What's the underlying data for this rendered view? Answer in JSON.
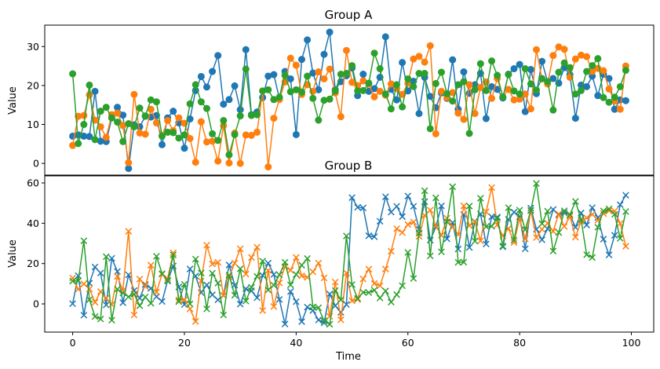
{
  "chart_data": [
    {
      "type": "line",
      "title": "Group A",
      "ylabel": "Value",
      "xlabel": "",
      "ylim": [
        -3,
        35.5
      ],
      "xlim": [
        -5,
        104
      ],
      "yticks": [
        0,
        10,
        20,
        30
      ],
      "marker": "circle",
      "grid": false,
      "x": [
        0,
        1,
        2,
        3,
        4,
        5,
        6,
        7,
        8,
        9,
        10,
        11,
        12,
        13,
        14,
        15,
        16,
        17,
        18,
        19,
        20,
        21,
        22,
        23,
        24,
        25,
        26,
        27,
        28,
        29,
        30,
        31,
        32,
        33,
        34,
        35,
        36,
        37,
        38,
        39,
        40,
        41,
        42,
        43,
        44,
        45,
        46,
        47,
        48,
        49,
        50,
        51,
        52,
        53,
        54,
        55,
        56,
        57,
        58,
        59,
        60,
        61,
        62,
        63,
        64,
        65,
        66,
        67,
        68,
        69,
        70,
        71,
        72,
        73,
        74,
        75,
        76,
        77,
        78,
        79,
        80,
        81,
        82,
        83,
        84,
        85,
        86,
        87,
        88,
        89,
        90,
        91,
        92,
        93,
        94,
        95,
        96,
        97,
        98,
        99
      ],
      "series": [
        {
          "color": "#1f77b4",
          "values": [
            7.0,
            7.3,
            7.0,
            6.9,
            18.5,
            5.7,
            5.6,
            11.7,
            14.4,
            12.4,
            -1.3,
            9.9,
            9.4,
            12.1,
            11.9,
            12.3,
            4.8,
            11.7,
            13.4,
            10.4,
            3.9,
            11.4,
            18.7,
            22.3,
            19.6,
            23.6,
            27.7,
            15.2,
            16.4,
            19.9,
            13.8,
            29.2,
            12.5,
            13.2,
            16.9,
            22.4,
            22.8,
            16.7,
            23.6,
            21.7,
            7.4,
            26.7,
            31.7,
            23.2,
            18.9,
            28.0,
            33.7,
            18.9,
            21.0,
            22.5,
            24.5,
            17.4,
            22.9,
            18.5,
            19.2,
            22.1,
            32.5,
            19.0,
            16.3,
            25.9,
            18.6,
            21.1,
            12.8,
            22.1,
            17.2,
            14.3,
            18.1,
            16.7,
            26.6,
            13.9,
            23.5,
            18.0,
            20.2,
            23.1,
            11.5,
            19.7,
            19.0,
            16.8,
            22.9,
            24.3,
            25.4,
            13.3,
            24.1,
            17.9,
            26.2,
            21.0,
            21.8,
            20.6,
            24.6,
            22.8,
            11.6,
            20.1,
            19.7,
            22.4,
            17.4,
            22.9,
            21.8,
            13.9,
            16.3,
            16.1
          ]
        },
        {
          "color": "#ff7f0e",
          "values": [
            4.6,
            12.1,
            12.3,
            17.6,
            11.1,
            9.4,
            6.7,
            12.5,
            12.9,
            9.7,
            0.2,
            17.7,
            7.8,
            7.5,
            13.9,
            10.4,
            7.1,
            11.0,
            8.4,
            11.7,
            10.3,
            6.4,
            0.3,
            10.7,
            5.5,
            5.7,
            0.6,
            9.7,
            0.1,
            7.8,
            0.0,
            7.3,
            7.2,
            8.0,
            18.6,
            -0.9,
            11.6,
            16.4,
            20.9,
            27.0,
            25.2,
            17.7,
            20.2,
            18.5,
            23.5,
            21.7,
            24.2,
            18.1,
            12.0,
            29.0,
            20.8,
            20.0,
            21.2,
            20.4,
            17.1,
            18.5,
            17.5,
            20.4,
            19.2,
            17.7,
            20.6,
            26.8,
            27.5,
            26.0,
            30.2,
            7.6,
            18.5,
            16.9,
            18.2,
            12.9,
            11.3,
            20.2,
            12.8,
            19.5,
            20.9,
            16.7,
            21.8,
            17.1,
            19.0,
            16.3,
            16.5,
            17.8,
            14.0,
            29.2,
            21.7,
            20.4,
            27.7,
            29.9,
            29.3,
            22.1,
            26.8,
            27.8,
            27.4,
            23.6,
            24.4,
            23.8,
            19.1,
            16.0,
            13.9,
            25.0
          ]
        },
        {
          "color": "#2ca02c",
          "values": [
            23.0,
            5.1,
            10.0,
            20.1,
            6.1,
            13.4,
            14.4,
            11.7,
            10.6,
            5.6,
            10.2,
            9.4,
            14.2,
            12.2,
            16.3,
            15.8,
            7.0,
            8.0,
            7.9,
            6.5,
            7.3,
            15.3,
            20.2,
            15.8,
            14.1,
            7.6,
            5.9,
            11.0,
            2.2,
            7.4,
            12.2,
            24.2,
            12.3,
            12.5,
            18.6,
            18.9,
            16.4,
            17.0,
            22.6,
            18.4,
            18.9,
            18.3,
            22.4,
            16.7,
            11.1,
            16.2,
            16.5,
            18.6,
            22.9,
            23.1,
            25.1,
            18.6,
            18.7,
            20.6,
            28.3,
            24.3,
            17.8,
            14.0,
            20.2,
            14.5,
            21.7,
            19.7,
            23.1,
            23.1,
            8.9,
            20.5,
            23.4,
            17.9,
            16.0,
            20.2,
            21.0,
            7.7,
            18.9,
            25.6,
            18.7,
            26.3,
            22.6,
            17.0,
            22.8,
            18.6,
            17.8,
            24.3,
            20.4,
            18.8,
            21.8,
            21.0,
            13.7,
            23.4,
            25.8,
            24.6,
            17.8,
            18.7,
            23.6,
            25.1,
            26.9,
            16.9,
            15.7,
            17.0,
            19.7,
            23.9
          ]
        }
      ]
    },
    {
      "type": "line",
      "title": "Group B",
      "ylabel": "Value",
      "xlabel": "Time",
      "ylim": [
        -14,
        63.5
      ],
      "xlim": [
        -5,
        104
      ],
      "xticks": [
        0,
        20,
        40,
        60,
        80,
        100
      ],
      "yticks": [
        0,
        20,
        40,
        60
      ],
      "marker": "x",
      "grid": false,
      "x": [
        0,
        1,
        2,
        3,
        4,
        5,
        6,
        7,
        8,
        9,
        10,
        11,
        12,
        13,
        14,
        15,
        16,
        17,
        18,
        19,
        20,
        21,
        22,
        23,
        24,
        25,
        26,
        27,
        28,
        29,
        30,
        31,
        32,
        33,
        34,
        35,
        36,
        37,
        38,
        39,
        40,
        41,
        42,
        43,
        44,
        45,
        46,
        47,
        48,
        49,
        50,
        51,
        52,
        53,
        54,
        55,
        56,
        57,
        58,
        59,
        60,
        61,
        62,
        63,
        64,
        65,
        66,
        67,
        68,
        69,
        70,
        71,
        72,
        73,
        74,
        75,
        76,
        77,
        78,
        79,
        80,
        81,
        82,
        83,
        84,
        85,
        86,
        87,
        88,
        89,
        90,
        91,
        92,
        93,
        94,
        95,
        96,
        97,
        98,
        99
      ],
      "series": [
        {
          "color": "#1f77b4",
          "values": [
            0.1,
            14.0,
            -5.6,
            10.3,
            18.3,
            15.3,
            -0.5,
            22.6,
            16.1,
            0.6,
            14.4,
            6.6,
            2.8,
            9.6,
            7.7,
            3.6,
            1.2,
            11.6,
            18.8,
            8.4,
            -0.3,
            17.3,
            13.8,
            5.6,
            9.4,
            4.5,
            2.0,
            4.1,
            19.3,
            9.3,
            -0.1,
            7.5,
            6.5,
            3.1,
            14.1,
            20.2,
            14.6,
            2.2,
            -10.0,
            6.1,
            1.1,
            -8.8,
            -1.6,
            -3.3,
            -8.0,
            -9.4,
            4.9,
            -0.9,
            -4.2,
            -0.3,
            52.7,
            47.9,
            47.6,
            33.8,
            33.3,
            41.0,
            53.1,
            45.5,
            48.4,
            43.3,
            53.5,
            48.4,
            37.0,
            50.7,
            31.6,
            38.1,
            48.6,
            32.3,
            40.3,
            27.2,
            44.3,
            28.0,
            40.8,
            44.6,
            29.7,
            43.2,
            43.1,
            28.3,
            41.9,
            45.5,
            43.3,
            27.3,
            47.5,
            37.0,
            31.8,
            37.2,
            46.8,
            44.1,
            45.2,
            44.1,
            38.0,
            45.1,
            39.1,
            47.7,
            42.8,
            32.1,
            24.3,
            34.0,
            49.2,
            53.9
          ]
        },
        {
          "color": "#ff7f0e",
          "values": [
            12.8,
            7.3,
            9.9,
            7.4,
            0.8,
            6.1,
            2.8,
            -0.3,
            13.6,
            6.7,
            36.0,
            -5.5,
            12.3,
            8.6,
            19.2,
            5.8,
            14.7,
            12.6,
            25.3,
            1.9,
            2.0,
            -2.5,
            -8.7,
            11.4,
            29.1,
            19.8,
            20.6,
            4.2,
            13.3,
            20.2,
            27.3,
            14.8,
            23.0,
            28.1,
            -3.3,
            16.6,
            -1.3,
            10.4,
            18.4,
            16.7,
            23.0,
            13.9,
            13.2,
            15.9,
            20.2,
            12.9,
            -6.2,
            10.8,
            -7.9,
            15.3,
            1.5,
            2.2,
            12.4,
            17.2,
            10.1,
            9.0,
            17.3,
            26.1,
            37.3,
            35.4,
            39.4,
            40.6,
            33.5,
            43.9,
            46.5,
            38.6,
            34.0,
            42.5,
            38.1,
            34.4,
            48.6,
            38.8,
            40.6,
            31.3,
            45.7,
            57.7,
            39.2,
            33.8,
            37.4,
            30.5,
            42.3,
            32.3,
            46.2,
            32.9,
            37.0,
            40.0,
            36.0,
            44.6,
            38.4,
            43.4,
            33.1,
            40.9,
            42.7,
            44.4,
            41.5,
            44.8,
            46.2,
            46.0,
            39.9,
            28.6
          ]
        },
        {
          "color": "#2ca02c",
          "values": [
            11.3,
            11.4,
            31.3,
            2.1,
            -6.3,
            -7.5,
            23.4,
            -8.1,
            7.3,
            5.4,
            3.5,
            4.8,
            -0.9,
            3.4,
            0.3,
            23.6,
            15.0,
            11.3,
            24.3,
            1.1,
            9.7,
            0.0,
            22.2,
            15.3,
            -2.5,
            15.2,
            10.3,
            -5.5,
            14.2,
            4.3,
            17.4,
            1.4,
            8.2,
            13.6,
            21.2,
            6.9,
            9.3,
            14.4,
            20.6,
            9.4,
            14.6,
            19.2,
            22.5,
            -1.5,
            -1.9,
            -8.4,
            -10.1,
            6.6,
            2.0,
            33.7,
            9.6,
            2.7,
            5.7,
            5.6,
            6.8,
            2.9,
            6.4,
            0.9,
            4.6,
            9.0,
            25.5,
            12.6,
            35.1,
            56.1,
            23.8,
            52.6,
            25.8,
            40.7,
            58.1,
            20.6,
            20.7,
            48.5,
            31.1,
            52.4,
            38.3,
            38.5,
            42.6,
            28.7,
            47.7,
            31.6,
            46.5,
            36.8,
            46.4,
            59.7,
            39.8,
            46.0,
            26.2,
            35.4,
            46.2,
            44.3,
            50.8,
            41.8,
            24.4,
            23.0,
            38.0,
            46.1,
            47.1,
            44.4,
            32.5,
            45.8
          ]
        }
      ]
    }
  ]
}
